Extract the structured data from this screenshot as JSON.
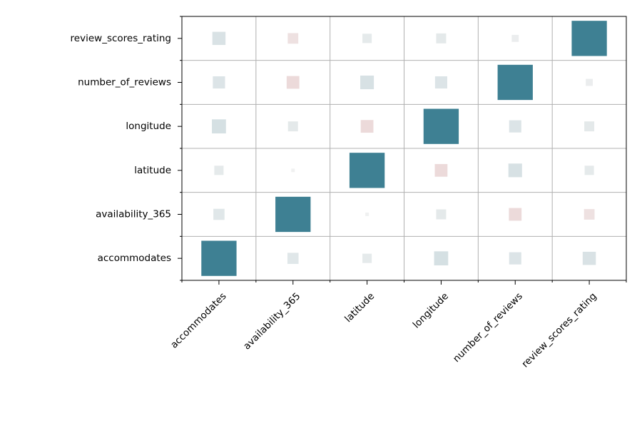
{
  "chart_data": {
    "type": "heatmap",
    "variant": "correlation-square-size",
    "title": "",
    "xlabel": "",
    "ylabel": "",
    "grid": true,
    "variables": [
      "accommodates",
      "availability_365",
      "latitude",
      "longitude",
      "number_of_reviews",
      "review_scores_rating"
    ],
    "x_tick_labels": [
      "accommodates",
      "availability_365",
      "latitude",
      "longitude",
      "number_of_reviews",
      "review_scores_rating"
    ],
    "y_tick_labels": [
      "accommodates",
      "availability_365",
      "latitude",
      "longitude",
      "number_of_reviews",
      "review_scores_rating"
    ],
    "value_range": [
      -1,
      1
    ],
    "colors": {
      "positive": "#3e8093",
      "negative": "#c13639",
      "neutral": "#f2f2f2"
    },
    "matrix": [
      [
        1.0,
        0.1,
        0.07,
        0.16,
        0.12,
        0.14
      ],
      [
        0.1,
        1.0,
        0.01,
        0.08,
        -0.13,
        -0.09
      ],
      [
        0.07,
        0.01,
        1.0,
        -0.13,
        0.15,
        0.07
      ],
      [
        0.16,
        0.08,
        -0.13,
        1.0,
        0.12,
        0.08
      ],
      [
        0.12,
        -0.13,
        0.15,
        0.12,
        1.0,
        0.04
      ],
      [
        0.14,
        -0.09,
        0.07,
        0.08,
        0.04,
        1.0
      ]
    ]
  }
}
